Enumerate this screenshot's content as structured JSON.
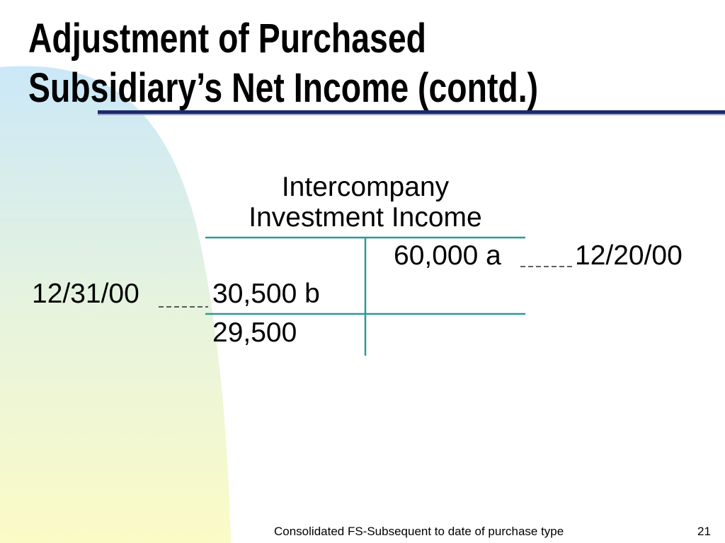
{
  "header": {
    "title": [
      "Adjustment of Purchased",
      "Subsidiary’s Net Income (contd.)"
    ]
  },
  "t_account": {
    "title": [
      "Intercompany",
      "Investment Income"
    ],
    "credit": {
      "entry": "60,000 a",
      "date": "12/20/00"
    },
    "debit": {
      "entry": "30,500 b",
      "date": "12/31/00"
    },
    "balance": "29,500"
  },
  "footer": {
    "text": "Consolidated FS-Subsequent to date of purchase type",
    "page": "21"
  }
}
